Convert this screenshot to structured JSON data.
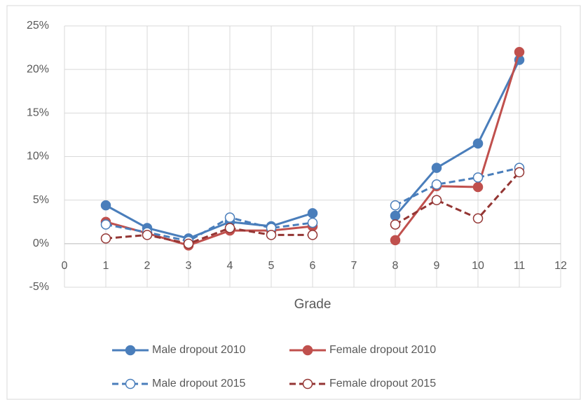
{
  "chart_data": {
    "type": "line",
    "x": [
      1,
      2,
      3,
      4,
      5,
      6,
      7,
      8,
      9,
      10,
      11
    ],
    "series": [
      {
        "name": "Male dropout 2010",
        "color": "#4a7ebb",
        "style": "solid",
        "marker": "filled",
        "values": [
          4.4,
          1.8,
          0.6,
          2.5,
          2.0,
          3.5,
          null,
          3.2,
          8.7,
          11.5,
          21.1
        ]
      },
      {
        "name": "Female dropout 2010",
        "color": "#c0504d",
        "style": "solid",
        "marker": "filled",
        "values": [
          2.5,
          1.2,
          -0.2,
          1.5,
          1.5,
          2.0,
          null,
          0.4,
          6.6,
          6.5,
          22.0
        ]
      },
      {
        "name": "Male dropout 2015",
        "color": "#4a7ebb",
        "style": "dashed",
        "marker": "open",
        "values": [
          2.2,
          1.3,
          0.3,
          3.0,
          1.8,
          2.4,
          null,
          4.4,
          6.8,
          7.6,
          8.7
        ]
      },
      {
        "name": "Female dropout 2015",
        "color": "#943634",
        "style": "dashed",
        "marker": "open",
        "values": [
          0.6,
          1.0,
          0.0,
          1.8,
          1.0,
          1.0,
          null,
          2.2,
          5.0,
          2.9,
          8.2
        ]
      }
    ],
    "xlabel": "Grade",
    "xlim": [
      0,
      12
    ],
    "xticks": [
      0,
      1,
      2,
      3,
      4,
      5,
      6,
      7,
      8,
      9,
      10,
      11,
      12
    ],
    "ylim": [
      -5,
      25
    ],
    "yticks": [
      {
        "value": -5,
        "label": "-5%"
      },
      {
        "value": 0,
        "label": "0%"
      },
      {
        "value": 5,
        "label": "5%"
      },
      {
        "value": 10,
        "label": "10%"
      },
      {
        "value": 15,
        "label": "15%"
      },
      {
        "value": 20,
        "label": "20%"
      },
      {
        "value": 25,
        "label": "25%"
      }
    ],
    "grid": true,
    "legend": "bottom"
  }
}
